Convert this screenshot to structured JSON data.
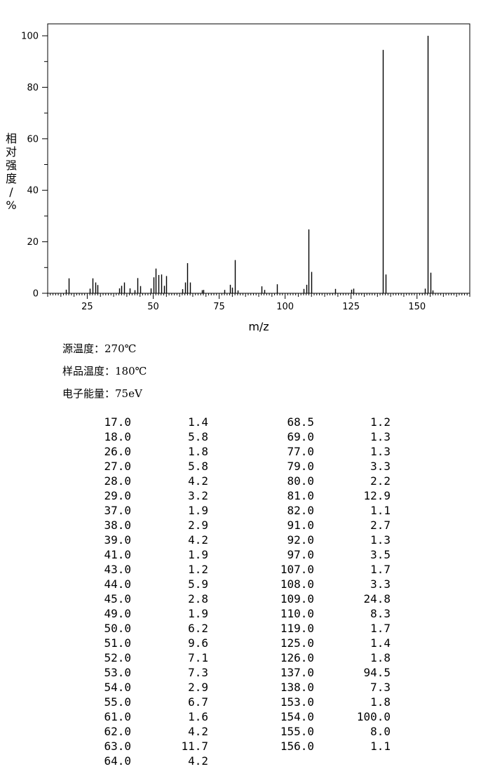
{
  "chart_data": {
    "type": "bar",
    "xlabel": "m/z",
    "ylabel": "相对强度/%",
    "xlim": [
      10,
      170
    ],
    "ylim": [
      0,
      105
    ],
    "x_ticks": [
      25,
      50,
      75,
      100,
      125,
      150
    ],
    "y_ticks": [
      0,
      20,
      40,
      60,
      80,
      100
    ],
    "grid": false,
    "peaks": [
      {
        "mz": 17.0,
        "intensity": 1.4
      },
      {
        "mz": 18.0,
        "intensity": 5.8
      },
      {
        "mz": 26.0,
        "intensity": 1.8
      },
      {
        "mz": 27.0,
        "intensity": 5.8
      },
      {
        "mz": 28.0,
        "intensity": 4.2
      },
      {
        "mz": 29.0,
        "intensity": 3.2
      },
      {
        "mz": 37.0,
        "intensity": 1.9
      },
      {
        "mz": 38.0,
        "intensity": 2.9
      },
      {
        "mz": 39.0,
        "intensity": 4.2
      },
      {
        "mz": 41.0,
        "intensity": 1.9
      },
      {
        "mz": 43.0,
        "intensity": 1.2
      },
      {
        "mz": 44.0,
        "intensity": 5.9
      },
      {
        "mz": 45.0,
        "intensity": 2.8
      },
      {
        "mz": 49.0,
        "intensity": 1.9
      },
      {
        "mz": 50.0,
        "intensity": 6.2
      },
      {
        "mz": 51.0,
        "intensity": 9.6
      },
      {
        "mz": 52.0,
        "intensity": 7.1
      },
      {
        "mz": 53.0,
        "intensity": 7.3
      },
      {
        "mz": 54.0,
        "intensity": 2.9
      },
      {
        "mz": 55.0,
        "intensity": 6.7
      },
      {
        "mz": 61.0,
        "intensity": 1.6
      },
      {
        "mz": 62.0,
        "intensity": 4.2
      },
      {
        "mz": 63.0,
        "intensity": 11.7
      },
      {
        "mz": 64.0,
        "intensity": 4.2
      },
      {
        "mz": 68.5,
        "intensity": 1.2
      },
      {
        "mz": 69.0,
        "intensity": 1.3
      },
      {
        "mz": 77.0,
        "intensity": 1.3
      },
      {
        "mz": 79.0,
        "intensity": 3.3
      },
      {
        "mz": 80.0,
        "intensity": 2.2
      },
      {
        "mz": 81.0,
        "intensity": 12.9
      },
      {
        "mz": 82.0,
        "intensity": 1.1
      },
      {
        "mz": 91.0,
        "intensity": 2.7
      },
      {
        "mz": 92.0,
        "intensity": 1.3
      },
      {
        "mz": 97.0,
        "intensity": 3.5
      },
      {
        "mz": 107.0,
        "intensity": 1.7
      },
      {
        "mz": 108.0,
        "intensity": 3.3
      },
      {
        "mz": 109.0,
        "intensity": 24.8
      },
      {
        "mz": 110.0,
        "intensity": 8.3
      },
      {
        "mz": 119.0,
        "intensity": 1.7
      },
      {
        "mz": 125.0,
        "intensity": 1.4
      },
      {
        "mz": 126.0,
        "intensity": 1.8
      },
      {
        "mz": 137.0,
        "intensity": 94.5
      },
      {
        "mz": 138.0,
        "intensity": 7.3
      },
      {
        "mz": 153.0,
        "intensity": 1.8
      },
      {
        "mz": 154.0,
        "intensity": 100.0
      },
      {
        "mz": 155.0,
        "intensity": 8.0
      },
      {
        "mz": 156.0,
        "intensity": 1.1
      }
    ]
  },
  "conditions": [
    "源温度：270℃",
    "样品温度：180℃",
    "电子能量：75eV"
  ],
  "table": {
    "left": [
      [
        "17.0",
        "1.4"
      ],
      [
        "18.0",
        "5.8"
      ],
      [
        "26.0",
        "1.8"
      ],
      [
        "27.0",
        "5.8"
      ],
      [
        "28.0",
        "4.2"
      ],
      [
        "29.0",
        "3.2"
      ],
      [
        "37.0",
        "1.9"
      ],
      [
        "38.0",
        "2.9"
      ],
      [
        "39.0",
        "4.2"
      ],
      [
        "41.0",
        "1.9"
      ],
      [
        "43.0",
        "1.2"
      ],
      [
        "44.0",
        "5.9"
      ],
      [
        "45.0",
        "2.8"
      ],
      [
        "49.0",
        "1.9"
      ],
      [
        "50.0",
        "6.2"
      ],
      [
        "51.0",
        "9.6"
      ],
      [
        "52.0",
        "7.1"
      ],
      [
        "53.0",
        "7.3"
      ],
      [
        "54.0",
        "2.9"
      ],
      [
        "55.0",
        "6.7"
      ],
      [
        "61.0",
        "1.6"
      ],
      [
        "62.0",
        "4.2"
      ],
      [
        "63.0",
        "11.7"
      ],
      [
        "64.0",
        "4.2"
      ]
    ],
    "right": [
      [
        "68.5",
        "1.2"
      ],
      [
        "69.0",
        "1.3"
      ],
      [
        "77.0",
        "1.3"
      ],
      [
        "79.0",
        "3.3"
      ],
      [
        "80.0",
        "2.2"
      ],
      [
        "81.0",
        "12.9"
      ],
      [
        "82.0",
        "1.1"
      ],
      [
        "91.0",
        "2.7"
      ],
      [
        "92.0",
        "1.3"
      ],
      [
        "97.0",
        "3.5"
      ],
      [
        "107.0",
        "1.7"
      ],
      [
        "108.0",
        "3.3"
      ],
      [
        "109.0",
        "24.8"
      ],
      [
        "110.0",
        "8.3"
      ],
      [
        "119.0",
        "1.7"
      ],
      [
        "125.0",
        "1.4"
      ],
      [
        "126.0",
        "1.8"
      ],
      [
        "137.0",
        "94.5"
      ],
      [
        "138.0",
        "7.3"
      ],
      [
        "153.0",
        "1.8"
      ],
      [
        "154.0",
        "100.0"
      ],
      [
        "155.0",
        "8.0"
      ],
      [
        "156.0",
        "1.1"
      ]
    ]
  }
}
